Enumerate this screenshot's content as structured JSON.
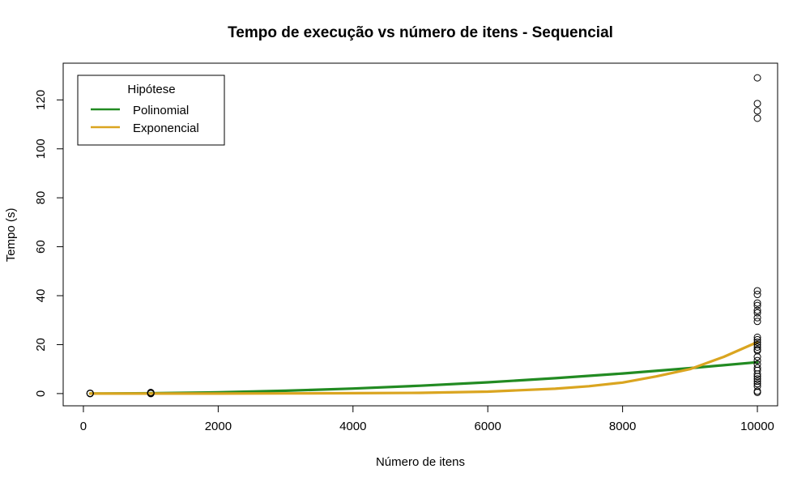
{
  "chart_data": {
    "type": "scatter",
    "title": "Tempo de execução vs número de itens - Sequencial",
    "xlabel": "Número de itens",
    "ylabel": "Tempo (s)",
    "xlim": [
      -300,
      10300
    ],
    "ylim": [
      -5,
      135
    ],
    "xticks": [
      0,
      2000,
      4000,
      6000,
      8000,
      10000
    ],
    "yticks": [
      0,
      20,
      40,
      60,
      80,
      100,
      120
    ],
    "grid": false,
    "legend": {
      "title": "Hipótese",
      "placement": "top-left",
      "entries": [
        {
          "label": "Polinomial",
          "color": "#228b22"
        },
        {
          "label": "Exponencial",
          "color": "#daa520"
        }
      ]
    },
    "points": [
      {
        "x": 100,
        "y": 0.0
      },
      {
        "x": 100,
        "y": 0.05
      },
      {
        "x": 100,
        "y": 0.1
      },
      {
        "x": 100,
        "y": 0.15
      },
      {
        "x": 1000,
        "y": 0.0
      },
      {
        "x": 1000,
        "y": 0.1
      },
      {
        "x": 1000,
        "y": 0.2
      },
      {
        "x": 1000,
        "y": 0.3
      },
      {
        "x": 1000,
        "y": 0.45
      },
      {
        "x": 10000,
        "y": 129
      },
      {
        "x": 10000,
        "y": 118.5
      },
      {
        "x": 10000,
        "y": 115.5
      },
      {
        "x": 10000,
        "y": 112.5
      },
      {
        "x": 10000,
        "y": 42
      },
      {
        "x": 10000,
        "y": 40.5
      },
      {
        "x": 10000,
        "y": 37
      },
      {
        "x": 10000,
        "y": 36
      },
      {
        "x": 10000,
        "y": 34
      },
      {
        "x": 10000,
        "y": 33
      },
      {
        "x": 10000,
        "y": 31
      },
      {
        "x": 10000,
        "y": 29.5
      },
      {
        "x": 10000,
        "y": 23
      },
      {
        "x": 10000,
        "y": 22
      },
      {
        "x": 10000,
        "y": 21
      },
      {
        "x": 10000,
        "y": 20
      },
      {
        "x": 10000,
        "y": 19
      },
      {
        "x": 10000,
        "y": 18
      },
      {
        "x": 10000,
        "y": 17.5
      },
      {
        "x": 10000,
        "y": 15
      },
      {
        "x": 10000,
        "y": 13.5
      },
      {
        "x": 10000,
        "y": 12
      },
      {
        "x": 10000,
        "y": 10.5
      },
      {
        "x": 10000,
        "y": 9.5
      },
      {
        "x": 10000,
        "y": 8
      },
      {
        "x": 10000,
        "y": 7
      },
      {
        "x": 10000,
        "y": 6
      },
      {
        "x": 10000,
        "y": 5
      },
      {
        "x": 10000,
        "y": 4
      },
      {
        "x": 10000,
        "y": 3
      },
      {
        "x": 10000,
        "y": 1
      },
      {
        "x": 10000,
        "y": 0.5
      }
    ],
    "series": [
      {
        "name": "Polinomial",
        "color": "#228b22",
        "x": [
          100,
          1000,
          2000,
          3000,
          4000,
          5000,
          6000,
          7000,
          8000,
          9000,
          10000
        ],
        "y": [
          0.0,
          0.13,
          0.51,
          1.15,
          2.05,
          3.2,
          4.6,
          6.3,
          8.2,
          10.4,
          12.8
        ]
      },
      {
        "name": "Exponencial",
        "color": "#daa520",
        "x": [
          100,
          1000,
          2000,
          3000,
          4000,
          5000,
          6000,
          7000,
          7500,
          8000,
          8500,
          9000,
          9500,
          10000
        ],
        "y": [
          0.0,
          0.0,
          0.0,
          0.05,
          0.15,
          0.3,
          0.8,
          2.0,
          3.0,
          4.5,
          7.0,
          10.0,
          15.0,
          21.0
        ]
      }
    ]
  }
}
